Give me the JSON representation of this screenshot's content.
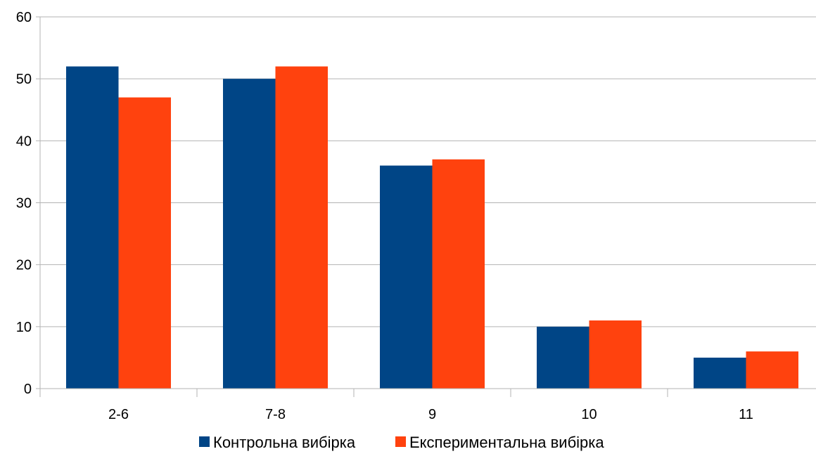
{
  "chart_data": {
    "type": "bar",
    "title": "",
    "xlabel": "",
    "ylabel": "",
    "categories": [
      "2-6",
      "7-8",
      "9",
      "10",
      "11"
    ],
    "series": [
      {
        "name": "Контрольна вибірка",
        "values": [
          52,
          50,
          36,
          10,
          5
        ],
        "color": "#004586"
      },
      {
        "name": "Експериментальна вибірка",
        "values": [
          47,
          52,
          37,
          11,
          6
        ],
        "color": "#FF420E"
      }
    ],
    "ylim": [
      0,
      60
    ],
    "yticks": [
      0,
      10,
      20,
      30,
      40,
      50,
      60
    ],
    "grid": "horizontal",
    "legend_position": "bottom"
  }
}
